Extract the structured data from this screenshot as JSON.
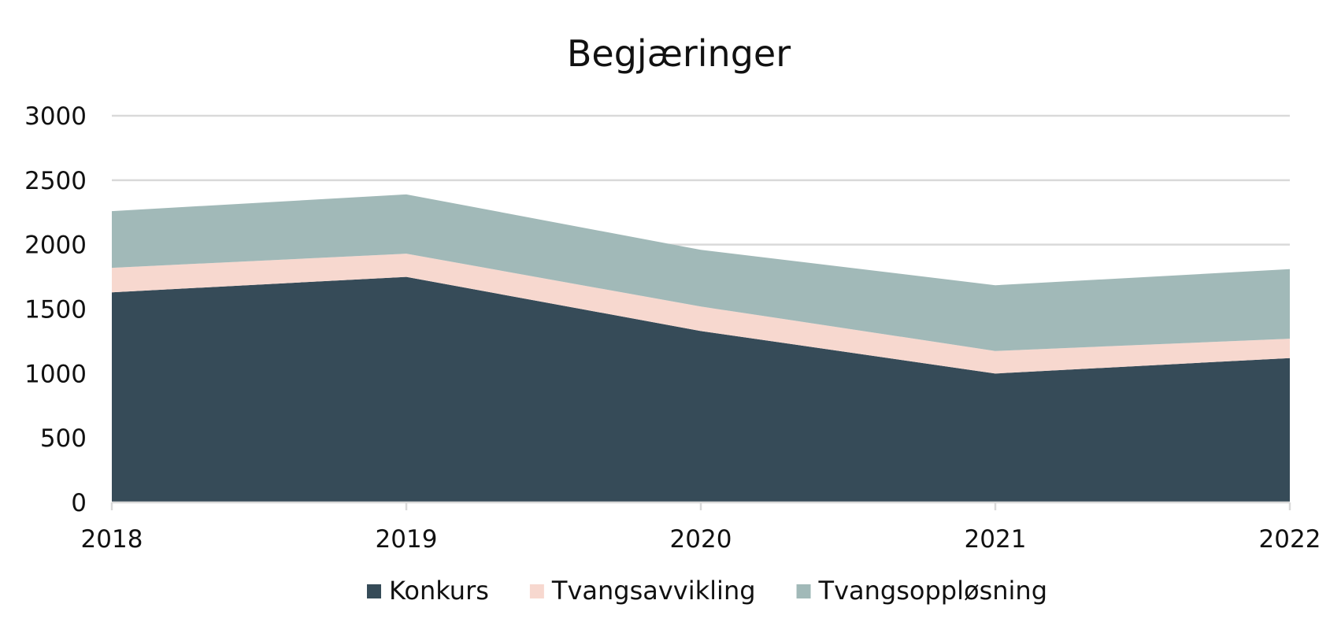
{
  "chart_data": {
    "type": "area",
    "stacked": true,
    "title": "Begjæringer",
    "xlabel": "",
    "ylabel": "",
    "x": [
      "2018",
      "2019",
      "2020",
      "2021",
      "2022"
    ],
    "yticks": [
      "0",
      "500",
      "1000",
      "1500",
      "2000",
      "2500",
      "3000"
    ],
    "ylim": [
      0,
      3000
    ],
    "grid": true,
    "legend_position": "bottom",
    "series": [
      {
        "name": "Konkurs",
        "color": "#364b58",
        "values": [
          1630,
          1750,
          1330,
          1000,
          1120
        ]
      },
      {
        "name": "Tvangsavvikling",
        "color": "#f7d8cf",
        "values": [
          190,
          180,
          190,
          175,
          150
        ]
      },
      {
        "name": "Tvangsoppløsning",
        "color": "#a1b9b8",
        "values": [
          440,
          460,
          440,
          510,
          540
        ]
      }
    ]
  }
}
